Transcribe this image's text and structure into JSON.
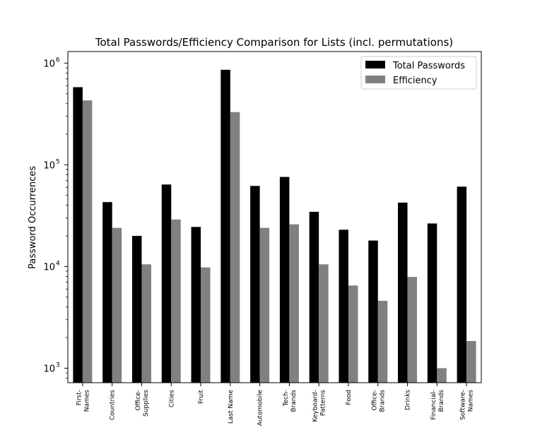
{
  "chart_data": {
    "type": "bar",
    "title": "Total Passwords/Efficiency Comparison for Lists (incl. permutations)",
    "xlabel": "",
    "ylabel": "Password Occurrences",
    "yscale": "log",
    "ylim": [
      720,
      1300000
    ],
    "grid": false,
    "legend_position": "top-right",
    "categories": [
      "First-\nNames",
      "Countries",
      "Office-\nSupplies",
      "Cities",
      "Fruit",
      "Last Name",
      "Automobile",
      "Tech-\nBrands",
      "Keyboard-\nPatterns",
      "Food",
      "Office-\nBrands",
      "Drinks",
      "Financial-\nBrands",
      "Software-\nNames"
    ],
    "series": [
      {
        "name": "Total Passwords",
        "color": "#000000",
        "values": [
          580000,
          43000,
          20000,
          64000,
          24500,
          860000,
          62000,
          76000,
          34500,
          23000,
          18000,
          42500,
          26500,
          61000
        ]
      },
      {
        "name": "Efficiency",
        "color": "#808080",
        "values": [
          430000,
          24000,
          10500,
          29000,
          9800,
          330000,
          24000,
          26000,
          10500,
          6500,
          4600,
          7900,
          1000,
          1850
        ]
      }
    ],
    "yticks": [
      {
        "base": "10",
        "exp": "3",
        "value": 1000
      },
      {
        "base": "10",
        "exp": "4",
        "value": 10000
      },
      {
        "base": "10",
        "exp": "5",
        "value": 100000
      },
      {
        "base": "10",
        "exp": "6",
        "value": 1000000
      }
    ]
  }
}
